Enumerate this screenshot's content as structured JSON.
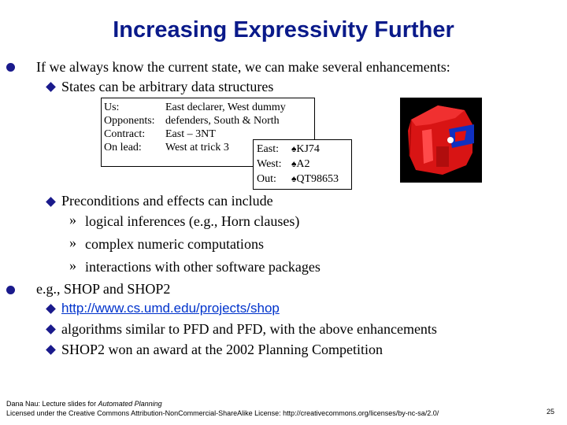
{
  "title": "Increasing Expressivity Further",
  "bullets": {
    "b1": "If we always know the current state, we can make several enhancements:",
    "b1_sub1": "States can be arbitrary data structures",
    "b1_sub2": "Preconditions and effects can include",
    "b1_sub2_items": [
      "logical inferences (e.g., Horn clauses)",
      "complex numeric computations",
      "interactions with other software packages"
    ],
    "b2": "e.g., SHOP and SHOP2",
    "b2_link": "http://www.cs.umd.edu/projects/shop",
    "b2_sub2": "algorithms similar to PFD and PFD, with the above enhancements",
    "b2_sub3": "SHOP2 won an award at the 2002 Planning Competition"
  },
  "state_box": {
    "labels": [
      "Us:",
      "Opponents:",
      "Contract:",
      "On lead:"
    ],
    "values": [
      "East declarer, West dummy",
      "defenders, South & North",
      "East – 3NT",
      "West at trick 3"
    ]
  },
  "cards_box": {
    "rows": [
      {
        "label": "East:",
        "suit": "♠",
        "cards": "KJ74"
      },
      {
        "label": "West:",
        "suit": "♠",
        "cards": "A2"
      },
      {
        "label": "Out:",
        "suit": "♠",
        "cards": "QT98653"
      }
    ]
  },
  "footer": {
    "line1_prefix": "Dana Nau: Lecture slides for ",
    "line1_italic": "Automated Planning",
    "line2": "Licensed under the Creative Commons Attribution-NonCommercial-ShareAlike License: http://creativecommons.org/licenses/by-nc-sa/2.0/"
  },
  "page_number": "25",
  "colors": {
    "title": "#0a1a8a",
    "bullet": "#1a1a8c",
    "link": "#0033cc",
    "cad_body": "#e01010",
    "cad_accent": "#1030c0"
  }
}
